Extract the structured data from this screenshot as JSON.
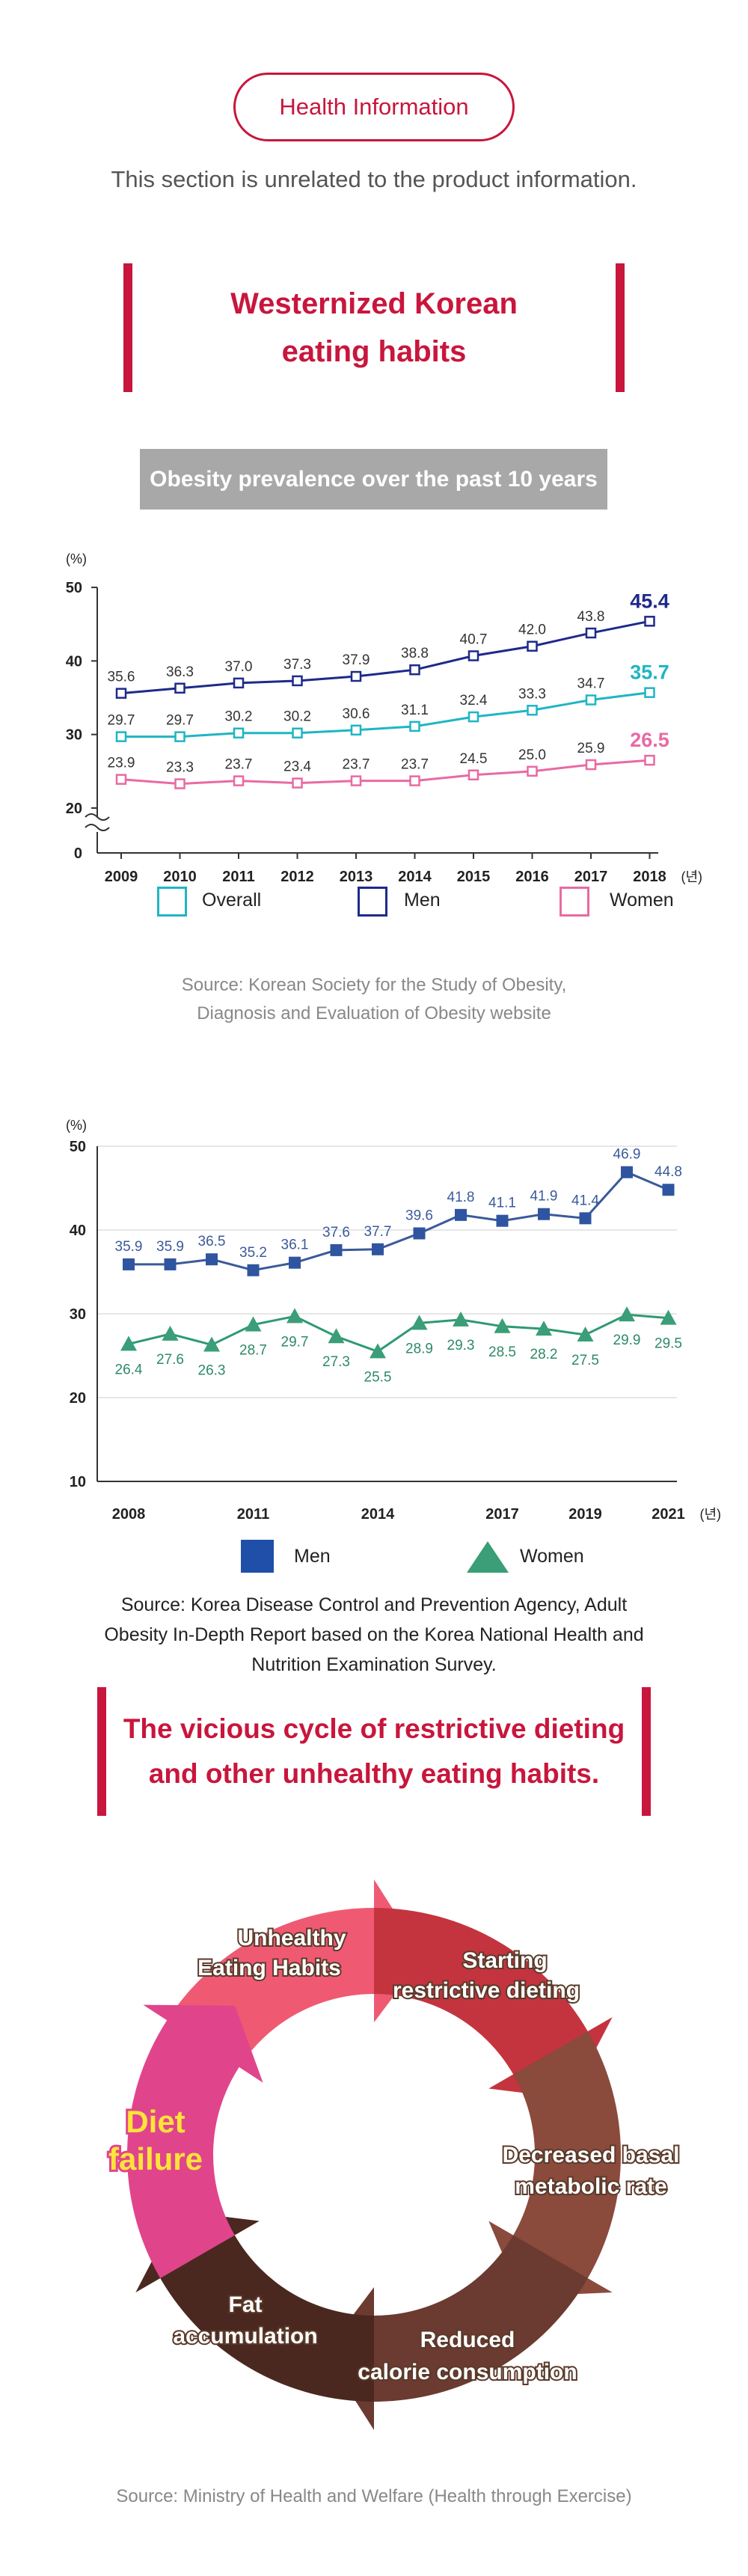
{
  "header": {
    "badge": "Health Information",
    "disclaimer": "This section is unrelated to the product information."
  },
  "section1": {
    "title_line1": "Westernized Korean",
    "title_line2": "eating habits"
  },
  "banner": "Obesity prevalence over the past 10 years",
  "chart1_source": {
    "line1": "Source: Korean Society for the Study of Obesity,",
    "line2": "Diagnosis and Evaluation of Obesity website"
  },
  "chart2_source": {
    "line1": "Source: Korea Disease Control and Prevention Agency, Adult",
    "line2": "Obesity In-Depth Report based on the Korea National Health and",
    "line3": "Nutrition Examination Survey."
  },
  "section2": {
    "title_line1": "The vicious cycle of restrictive dieting",
    "title_line2": "and other unhealthy eating habits."
  },
  "cycle": {
    "steps": [
      {
        "line1": "Unhealthy",
        "line2": "Eating Habits"
      },
      {
        "line1": "Starting",
        "line2": "restrictive dieting"
      },
      {
        "line1": "Decreased basal",
        "line2": "metabolic rate"
      },
      {
        "line1": "Reduced",
        "line2": "calorie consumption"
      },
      {
        "line1": "Fat",
        "line2": "accumulation"
      },
      {
        "line1": "Diet",
        "line2": "failure"
      }
    ],
    "colors": [
      "#ef5a72",
      "#c4343e",
      "#8a4a3c",
      "#6b3a30",
      "#4a2820",
      "#e0458c"
    ]
  },
  "footer_source": "Source: Ministry of Health and Welfare (Health through Exercise)",
  "chart_data": [
    {
      "type": "line",
      "ylabel": "(%)",
      "x_unit": "(년)",
      "categories": [
        "2009",
        "2010",
        "2011",
        "2012",
        "2013",
        "2014",
        "2015",
        "2016",
        "2017",
        "2018"
      ],
      "ylim": [
        0,
        50
      ],
      "yticks": [
        0,
        20,
        30,
        40,
        50
      ],
      "axis_break": true,
      "legend_position": "bottom",
      "series": [
        {
          "name": "Men",
          "color": "#1e2a8a",
          "values": [
            35.6,
            36.3,
            37.0,
            37.3,
            37.9,
            38.8,
            40.7,
            42.0,
            43.8,
            45.4
          ]
        },
        {
          "name": "Overall",
          "color": "#1fb5c4",
          "values": [
            29.7,
            29.7,
            30.2,
            30.2,
            30.6,
            31.1,
            32.4,
            33.3,
            34.7,
            35.7
          ]
        },
        {
          "name": "Women",
          "color": "#e86aa4",
          "values": [
            23.9,
            23.3,
            23.7,
            23.4,
            23.7,
            23.7,
            24.5,
            25.0,
            25.9,
            26.5
          ]
        }
      ],
      "legend_order": [
        "Overall",
        "Men",
        "Women"
      ]
    },
    {
      "type": "line",
      "ylabel": "(%)",
      "x_unit": "(년)",
      "x": [
        2008,
        2009,
        2010,
        2011,
        2012,
        2013,
        2014,
        2015,
        2016,
        2017,
        2018,
        2019,
        2020,
        2021
      ],
      "xtick_labels": [
        "2008",
        "2011",
        "2014",
        "2017",
        "2019",
        "2021"
      ],
      "ylim": [
        10,
        50
      ],
      "yticks": [
        10,
        20,
        30,
        40,
        50
      ],
      "legend_position": "bottom",
      "series": [
        {
          "name": "Men",
          "color": "#3a5a9a",
          "marker_color": "#2f55a0",
          "values": [
            35.9,
            35.9,
            36.5,
            35.2,
            36.1,
            37.6,
            37.7,
            39.6,
            41.8,
            41.1,
            41.9,
            41.4,
            46.9,
            44.8
          ]
        },
        {
          "name": "Women",
          "color": "#2e9a72",
          "marker_color": "#3a9e78",
          "values": [
            26.4,
            27.6,
            26.3,
            28.7,
            29.7,
            27.3,
            25.5,
            28.9,
            29.3,
            28.5,
            28.2,
            27.5,
            29.9,
            29.5
          ]
        }
      ]
    }
  ]
}
